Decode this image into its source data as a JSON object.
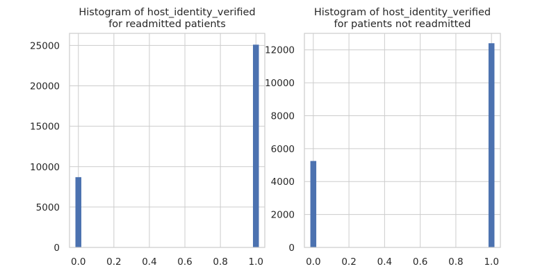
{
  "chart_data": [
    {
      "type": "bar",
      "title_lines": [
        "Histogram of host_identity_verified",
        "for readmitted patients"
      ],
      "xlabel": "",
      "ylabel": "",
      "xlim": [
        -0.05,
        1.05
      ],
      "ylim": [
        0,
        26500
      ],
      "x_ticks": [
        0.0,
        0.2,
        0.4,
        0.6,
        0.8,
        1.0
      ],
      "x_tick_labels": [
        "0.0",
        "0.2",
        "0.4",
        "0.6",
        "0.8",
        "1.0"
      ],
      "y_ticks": [
        0,
        5000,
        10000,
        15000,
        20000,
        25000
      ],
      "y_tick_labels": [
        "0",
        "5000",
        "10000",
        "15000",
        "20000",
        "25000"
      ],
      "grid": true,
      "bar_color": "#4c72b0",
      "bin_width": 0.0333,
      "bins": [
        {
          "x": 0.0,
          "value": 8700
        },
        {
          "x": 1.0,
          "value": 25100
        }
      ]
    },
    {
      "type": "bar",
      "title_lines": [
        "Histogram of host_identity_verified",
        "for patients not readmitted"
      ],
      "xlabel": "",
      "ylabel": "",
      "xlim": [
        -0.05,
        1.05
      ],
      "ylim": [
        0,
        13000
      ],
      "x_ticks": [
        0.0,
        0.2,
        0.4,
        0.6,
        0.8,
        1.0
      ],
      "x_tick_labels": [
        "0.0",
        "0.2",
        "0.4",
        "0.6",
        "0.8",
        "1.0"
      ],
      "y_ticks": [
        0,
        2000,
        4000,
        6000,
        8000,
        10000,
        12000
      ],
      "y_tick_labels": [
        "0",
        "2000",
        "4000",
        "6000",
        "8000",
        "10000",
        "12000"
      ],
      "grid": true,
      "bar_color": "#4c72b0",
      "bin_width": 0.0333,
      "bins": [
        {
          "x": 0.0,
          "value": 5250
        },
        {
          "x": 1.0,
          "value": 12400
        }
      ]
    }
  ]
}
